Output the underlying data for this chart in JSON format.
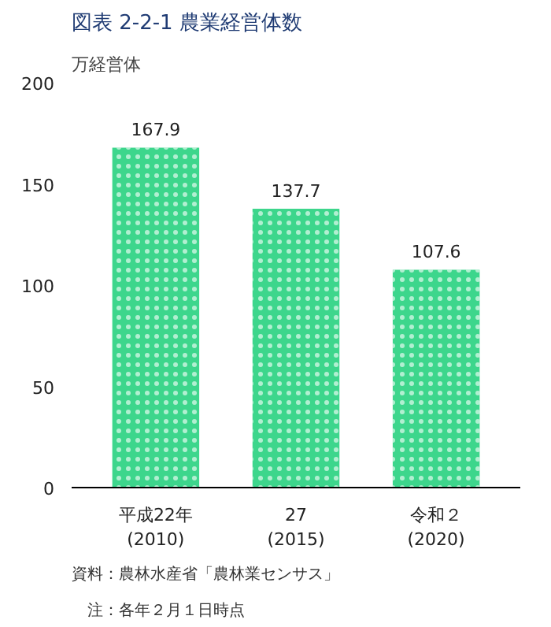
{
  "chart_data": {
    "type": "bar",
    "title": "図表 2-2-1 農業経営体数",
    "ylabel": "万経営体",
    "categories": [
      "平成22年\n(2010)",
      "27\n(2015)",
      "令和２\n(2020)"
    ],
    "values": [
      167.9,
      137.7,
      107.6
    ],
    "color": "#3dd68c",
    "ylim": [
      0,
      200
    ],
    "yticks": [
      0,
      50,
      100,
      150,
      200
    ],
    "grid": false,
    "data_labels": true,
    "annotations": [
      "資料：農林水産省「農林業センサス」",
      "　注：各年２月１日時点"
    ]
  }
}
